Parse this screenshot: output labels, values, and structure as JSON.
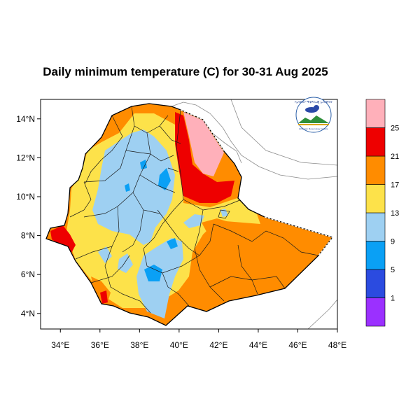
{
  "title": "Daily minimum temperature (C) for 30-31 Aug 2025",
  "axes": {
    "x_ticks": [
      "34°E",
      "36°E",
      "38°E",
      "40°E",
      "42°E",
      "44°E",
      "46°E",
      "48°E"
    ],
    "y_ticks": [
      "14°N",
      "12°N",
      "10°N",
      "8°N",
      "6°N",
      "4°N"
    ],
    "x_range": [
      33,
      48
    ],
    "y_range": [
      3.2,
      15
    ]
  },
  "legend": {
    "bins": [
      {
        "color": "#9b30ff",
        "label": "1"
      },
      {
        "color": "#2b4be0",
        "label": "5"
      },
      {
        "color": "#0aa0f5",
        "label": "9"
      },
      {
        "color": "#9ed0f2",
        "label": "13"
      },
      {
        "color": "#fde24a",
        "label": "17"
      },
      {
        "color": "#ff8c00",
        "label": "21"
      },
      {
        "color": "#ee0000",
        "label": "25"
      },
      {
        "color": "#ffb0ba",
        "label": ""
      }
    ]
  },
  "logo": {
    "arc_text": "የኢትዮጵያ ሚቲዎሮሎጂ ኢንስቲትዩት",
    "sub_text": "Ethiopian Meteorology Institute"
  }
}
